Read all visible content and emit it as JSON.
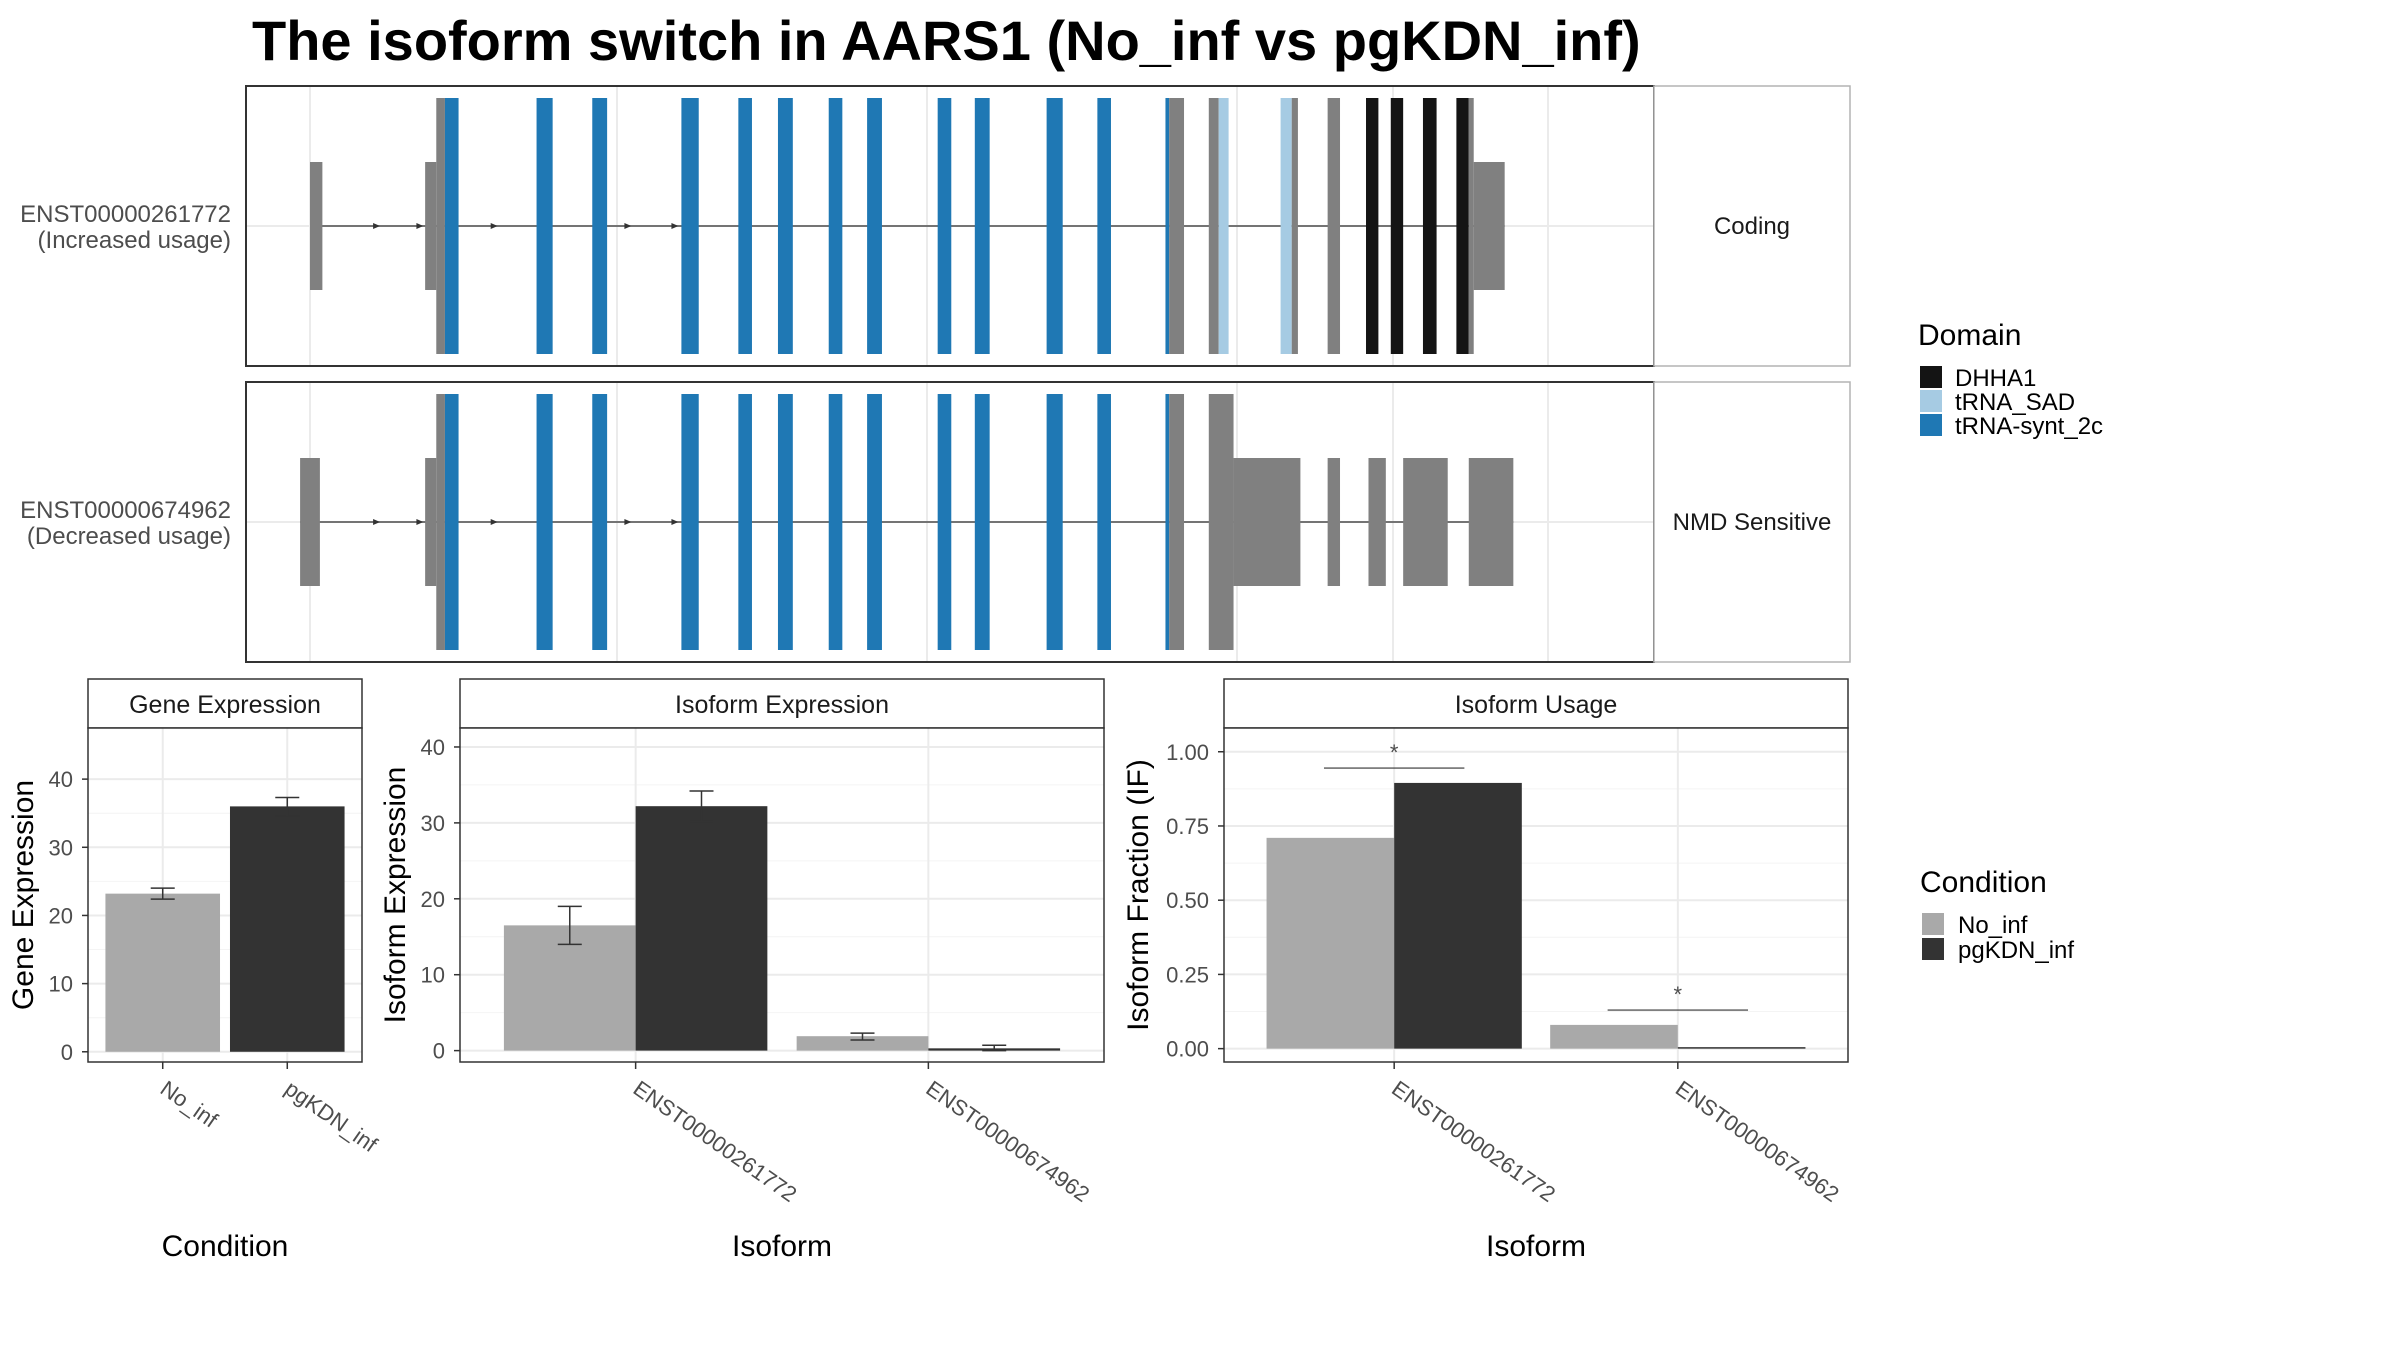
{
  "title": "The isoform switch in AARS1 (No_inf vs pgKDN_inf)",
  "colors": {
    "DHHA1": "#141414",
    "tRNA_SAD": "#a6cbe3",
    "tRNA-synt_2c": "#1f78b4",
    "noncoding": "#808080",
    "No_inf": "#a9a9a9",
    "pgKDN_inf": "#333333",
    "grid": "#ebebeb",
    "panel_border": "#333333",
    "strip_border": "#b3b3b3"
  },
  "transcripts": [
    {
      "id": "ENST00000261772",
      "usage": "(Increased usage)",
      "category": "Coding",
      "exons": [
        {
          "start": 0.0,
          "end": 1.0,
          "h": "utr",
          "fill": "noncoding"
        },
        {
          "start": 9.3,
          "end": 10.2,
          "h": "utr",
          "fill": "noncoding"
        },
        {
          "start": 10.2,
          "end": 10.9,
          "h": "cds",
          "fill": "noncoding"
        },
        {
          "start": 10.9,
          "end": 12.0,
          "h": "cds",
          "fill": "tRNA-synt_2c"
        },
        {
          "start": 18.3,
          "end": 19.6,
          "h": "cds",
          "fill": "tRNA-synt_2c"
        },
        {
          "start": 22.8,
          "end": 24.0,
          "h": "cds",
          "fill": "tRNA-synt_2c"
        },
        {
          "start": 30.0,
          "end": 31.4,
          "h": "cds",
          "fill": "tRNA-synt_2c"
        },
        {
          "start": 34.6,
          "end": 35.7,
          "h": "cds",
          "fill": "tRNA-synt_2c"
        },
        {
          "start": 37.8,
          "end": 39.0,
          "h": "cds",
          "fill": "tRNA-synt_2c"
        },
        {
          "start": 41.9,
          "end": 43.0,
          "h": "cds",
          "fill": "tRNA-synt_2c"
        },
        {
          "start": 45.0,
          "end": 46.2,
          "h": "cds",
          "fill": "tRNA-synt_2c"
        },
        {
          "start": 50.7,
          "end": 51.8,
          "h": "cds",
          "fill": "tRNA-synt_2c"
        },
        {
          "start": 53.7,
          "end": 54.9,
          "h": "cds",
          "fill": "tRNA-synt_2c"
        },
        {
          "start": 59.5,
          "end": 60.8,
          "h": "cds",
          "fill": "tRNA-synt_2c"
        },
        {
          "start": 63.6,
          "end": 64.7,
          "h": "cds",
          "fill": "tRNA-synt_2c"
        },
        {
          "start": 69.1,
          "end": 69.4,
          "h": "cds",
          "fill": "tRNA-synt_2c"
        },
        {
          "start": 69.4,
          "end": 70.6,
          "h": "cds",
          "fill": "noncoding"
        },
        {
          "start": 72.6,
          "end": 73.4,
          "h": "cds",
          "fill": "noncoding"
        },
        {
          "start": 73.4,
          "end": 74.2,
          "h": "cds",
          "fill": "tRNA_SAD"
        },
        {
          "start": 78.4,
          "end": 79.3,
          "h": "cds",
          "fill": "tRNA_SAD"
        },
        {
          "start": 79.3,
          "end": 79.8,
          "h": "cds",
          "fill": "noncoding"
        },
        {
          "start": 82.2,
          "end": 83.2,
          "h": "cds",
          "fill": "noncoding"
        },
        {
          "start": 85.3,
          "end": 86.3,
          "h": "cds",
          "fill": "DHHA1"
        },
        {
          "start": 87.3,
          "end": 88.3,
          "h": "cds",
          "fill": "DHHA1"
        },
        {
          "start": 89.9,
          "end": 91.0,
          "h": "cds",
          "fill": "DHHA1"
        },
        {
          "start": 92.6,
          "end": 93.6,
          "h": "cds",
          "fill": "DHHA1"
        },
        {
          "start": 93.6,
          "end": 94.0,
          "h": "cds",
          "fill": "noncoding"
        },
        {
          "start": 94.0,
          "end": 96.5,
          "h": "utr",
          "fill": "noncoding"
        }
      ]
    },
    {
      "id": "ENST00000674962",
      "usage": "(Decreased usage)",
      "category": "NMD Sensitive",
      "exons": [
        {
          "start": -0.8,
          "end": 0.8,
          "h": "utr",
          "fill": "noncoding"
        },
        {
          "start": 9.3,
          "end": 10.2,
          "h": "utr",
          "fill": "noncoding"
        },
        {
          "start": 10.2,
          "end": 10.9,
          "h": "cds",
          "fill": "noncoding"
        },
        {
          "start": 10.9,
          "end": 12.0,
          "h": "cds",
          "fill": "tRNA-synt_2c"
        },
        {
          "start": 18.3,
          "end": 19.6,
          "h": "cds",
          "fill": "tRNA-synt_2c"
        },
        {
          "start": 22.8,
          "end": 24.0,
          "h": "cds",
          "fill": "tRNA-synt_2c"
        },
        {
          "start": 30.0,
          "end": 31.4,
          "h": "cds",
          "fill": "tRNA-synt_2c"
        },
        {
          "start": 34.6,
          "end": 35.7,
          "h": "cds",
          "fill": "tRNA-synt_2c"
        },
        {
          "start": 37.8,
          "end": 39.0,
          "h": "cds",
          "fill": "tRNA-synt_2c"
        },
        {
          "start": 41.9,
          "end": 43.0,
          "h": "cds",
          "fill": "tRNA-synt_2c"
        },
        {
          "start": 45.0,
          "end": 46.2,
          "h": "cds",
          "fill": "tRNA-synt_2c"
        },
        {
          "start": 50.7,
          "end": 51.8,
          "h": "cds",
          "fill": "tRNA-synt_2c"
        },
        {
          "start": 53.7,
          "end": 54.9,
          "h": "cds",
          "fill": "tRNA-synt_2c"
        },
        {
          "start": 59.5,
          "end": 60.8,
          "h": "cds",
          "fill": "tRNA-synt_2c"
        },
        {
          "start": 63.6,
          "end": 64.7,
          "h": "cds",
          "fill": "tRNA-synt_2c"
        },
        {
          "start": 69.1,
          "end": 69.4,
          "h": "cds",
          "fill": "tRNA-synt_2c"
        },
        {
          "start": 69.4,
          "end": 70.6,
          "h": "cds",
          "fill": "noncoding"
        },
        {
          "start": 72.6,
          "end": 74.6,
          "h": "cds",
          "fill": "noncoding"
        },
        {
          "start": 74.6,
          "end": 80.0,
          "h": "utr",
          "fill": "noncoding"
        },
        {
          "start": 82.2,
          "end": 83.2,
          "h": "utr",
          "fill": "noncoding"
        },
        {
          "start": 85.5,
          "end": 86.9,
          "h": "utr",
          "fill": "noncoding"
        },
        {
          "start": 88.3,
          "end": 91.9,
          "h": "utr",
          "fill": "noncoding"
        },
        {
          "start": 93.6,
          "end": 97.2,
          "h": "utr",
          "fill": "noncoding"
        }
      ]
    }
  ],
  "intron_arrows": [
    5.5,
    9.0,
    15.0,
    18.8,
    25.8,
    29.6
  ],
  "domain_legend": {
    "title": "Domain",
    "items": [
      {
        "label": "DHHA1",
        "color_key": "DHHA1"
      },
      {
        "label": "tRNA_SAD",
        "color_key": "tRNA_SAD"
      },
      {
        "label": "tRNA-synt_2c",
        "color_key": "tRNA-synt_2c"
      }
    ]
  },
  "condition_legend": {
    "title": "Condition",
    "items": [
      {
        "label": "No_inf",
        "color_key": "No_inf"
      },
      {
        "label": "pgKDN_inf",
        "color_key": "pgKDN_inf"
      }
    ]
  },
  "chart_data": [
    {
      "type": "bar",
      "panel": "Gene Expression",
      "categories": [
        "No_inf",
        "pgKDN_inf"
      ],
      "values": [
        23.2,
        36.0
      ],
      "errors": [
        [
          22.4,
          24.0
        ],
        [
          34.6,
          37.3
        ]
      ],
      "xlabel": "Condition",
      "ylabel": "Gene Expression",
      "ylim": [
        -1.5,
        47.5
      ],
      "yticks": [
        0,
        10,
        20,
        30,
        40
      ],
      "ytick_labels": [
        "0",
        "10",
        "20",
        "30",
        "40"
      ]
    },
    {
      "type": "bar",
      "panel": "Isoform Expression",
      "categories": [
        "ENST00000261772",
        "ENST00000674962"
      ],
      "series": [
        {
          "name": "No_inf",
          "values": [
            16.5,
            1.9
          ],
          "errors": [
            [
              14.0,
              19.0
            ],
            [
              1.4,
              2.3
            ]
          ]
        },
        {
          "name": "pgKDN_inf",
          "values": [
            32.2,
            0.3
          ],
          "errors": [
            [
              30.2,
              34.2
            ],
            [
              0.0,
              0.7
            ]
          ]
        }
      ],
      "xlabel": "Isoform",
      "ylabel": "Isoform Expression",
      "ylim": [
        -1.5,
        42.5
      ],
      "yticks": [
        0,
        10,
        20,
        30,
        40
      ],
      "ytick_labels": [
        "0",
        "10",
        "20",
        "30",
        "40"
      ]
    },
    {
      "type": "bar",
      "panel": "Isoform Usage",
      "categories": [
        "ENST00000261772",
        "ENST00000674962"
      ],
      "series": [
        {
          "name": "No_inf",
          "values": [
            0.71,
            0.08
          ]
        },
        {
          "name": "pgKDN_inf",
          "values": [
            0.895,
            0.005
          ]
        }
      ],
      "significance": [
        {
          "category": "ENST00000261772",
          "label": "*",
          "y": 0.945
        },
        {
          "category": "ENST00000674962",
          "label": "*",
          "y": 0.13
        }
      ],
      "xlabel": "Isoform",
      "ylabel": "Isoform Fraction (IF)",
      "ylim": [
        -0.045,
        1.08
      ],
      "yticks": [
        0.0,
        0.25,
        0.5,
        0.75,
        1.0
      ],
      "ytick_labels": [
        "0.00",
        "0.25",
        "0.50",
        "0.75",
        "1.00"
      ]
    }
  ]
}
